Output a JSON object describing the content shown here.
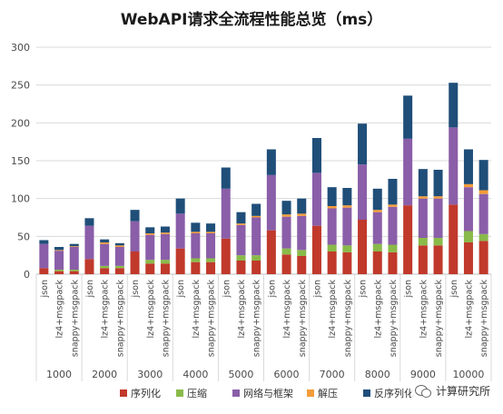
{
  "chart_data": {
    "type": "bar",
    "stacked": true,
    "title": "WebAPI请求全流程性能总览（ms）",
    "ylim": [
      0,
      300
    ],
    "yticks": [
      0,
      50,
      100,
      150,
      200,
      250,
      300
    ],
    "grid": true,
    "legend_position": "bottom",
    "groups": [
      "1000",
      "2000",
      "3000",
      "4000",
      "5000",
      "6000",
      "7000",
      "8000",
      "9000",
      "10000"
    ],
    "formats": [
      "json",
      "lz4+msgpack",
      "snappy+msgpack"
    ],
    "categories": [
      "json",
      "lz4+msgpack",
      "snappy+msgpack",
      "json",
      "lz4+msgpack",
      "snappy+msgpack",
      "json",
      "lz4+msgpack",
      "snappy+msgpack",
      "json",
      "lz4+msgpack",
      "snappy+msgpack",
      "json",
      "lz4+msgpack",
      "snappy+msgpack",
      "json",
      "lz4+msgpack",
      "snappy+msgpack",
      "json",
      "lz4+msgpack",
      "snappy+msgpack",
      "json",
      "lz4+msgpack",
      "snappy+msgpack",
      "json",
      "lz4+msgpack",
      "snappy+msgpack",
      "json",
      "lz4+msgpack",
      "snappy+msgpack"
    ],
    "series": [
      {
        "name": "序列化",
        "color": "#c0392b",
        "values": [
          8,
          4,
          4,
          20,
          8,
          8,
          30,
          14,
          14,
          34,
          16,
          16,
          47,
          18,
          18,
          58,
          26,
          24,
          64,
          30,
          29,
          72,
          30,
          29,
          91,
          38,
          38,
          92,
          42,
          44
        ]
      },
      {
        "name": "压缩",
        "color": "#8aba4a",
        "values": [
          0,
          2,
          2,
          0,
          3,
          3,
          0,
          5,
          5,
          0,
          5,
          5,
          0,
          7,
          7,
          0,
          8,
          8,
          0,
          9,
          9,
          0,
          10,
          10,
          0,
          10,
          10,
          0,
          15,
          9
        ]
      },
      {
        "name": "网络与框架",
        "color": "#8a5ea8",
        "values": [
          32,
          25,
          30,
          44,
          29,
          25,
          40,
          33,
          34,
          46,
          33,
          33,
          66,
          40,
          50,
          73,
          42,
          45,
          70,
          48,
          50,
          73,
          42,
          50,
          88,
          52,
          52,
          102,
          58,
          53
        ]
      },
      {
        "name": "解压",
        "color": "#f39c3a",
        "values": [
          0,
          1,
          1,
          0,
          2,
          2,
          0,
          2,
          2,
          0,
          2,
          2,
          0,
          2,
          2,
          0,
          3,
          3,
          0,
          3,
          3,
          0,
          3,
          3,
          0,
          3,
          3,
          0,
          4,
          5
        ]
      },
      {
        "name": "反序列化",
        "color": "#1f4e79",
        "values": [
          5,
          4,
          3,
          10,
          4,
          3,
          15,
          8,
          8,
          20,
          12,
          11,
          28,
          15,
          16,
          34,
          18,
          20,
          46,
          25,
          23,
          54,
          28,
          34,
          57,
          36,
          35,
          59,
          46,
          40
        ]
      }
    ]
  },
  "watermark": {
    "text": "计算研究所",
    "icon": "wechat-icon"
  }
}
